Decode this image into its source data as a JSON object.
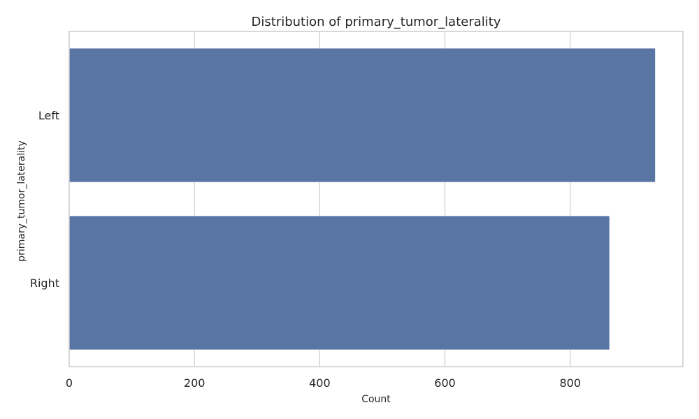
{
  "chart_data": {
    "type": "bar",
    "orientation": "horizontal",
    "title": "Distribution of primary_tumor_laterality",
    "xlabel": "Count",
    "ylabel": "primary_tumor_laterality",
    "categories": [
      "Left",
      "Right"
    ],
    "values": [
      936,
      863
    ],
    "xlim": [
      0,
      980
    ],
    "xticks": [
      0,
      200,
      400,
      600,
      800
    ],
    "xtick_labels": [
      "0",
      "200",
      "400",
      "600",
      "800"
    ],
    "grid": "vertical",
    "legend": "none",
    "colors": {
      "bar": "#5975a4",
      "grid": "#cccccc",
      "spine": "#cccccc",
      "text": "#262626"
    }
  }
}
